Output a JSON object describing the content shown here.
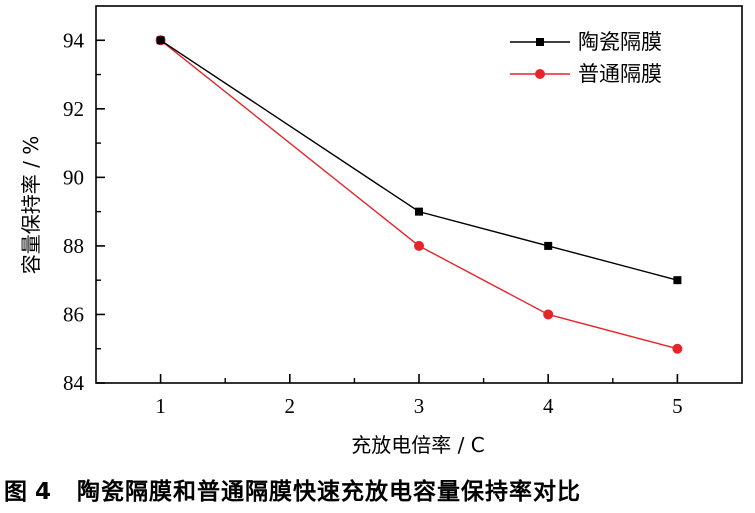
{
  "chart_data": {
    "type": "line",
    "x": [
      1,
      3,
      4,
      5
    ],
    "xticks": [
      "1",
      "2",
      "3",
      "4",
      "5"
    ],
    "yticks": [
      "84",
      "86",
      "88",
      "90",
      "92",
      "94"
    ],
    "xlim": [
      0.5,
      5.5
    ],
    "ylim": [
      84,
      95
    ],
    "xlabel": "充放电倍率 / C",
    "ylabel": "容量保持率 / %",
    "grid": false,
    "legend_position": "top-right",
    "series": [
      {
        "name": "陶瓷隔膜",
        "values": [
          94,
          89,
          88,
          87
        ],
        "color": "#000000",
        "marker": "square"
      },
      {
        "name": "普通隔膜",
        "values": [
          94,
          88,
          86,
          85
        ],
        "color": "#e8242b",
        "marker": "circle"
      }
    ]
  },
  "caption": {
    "figure_number": "图 4",
    "text": "陶瓷隔膜和普通隔膜快速充放电容量保持率对比"
  }
}
